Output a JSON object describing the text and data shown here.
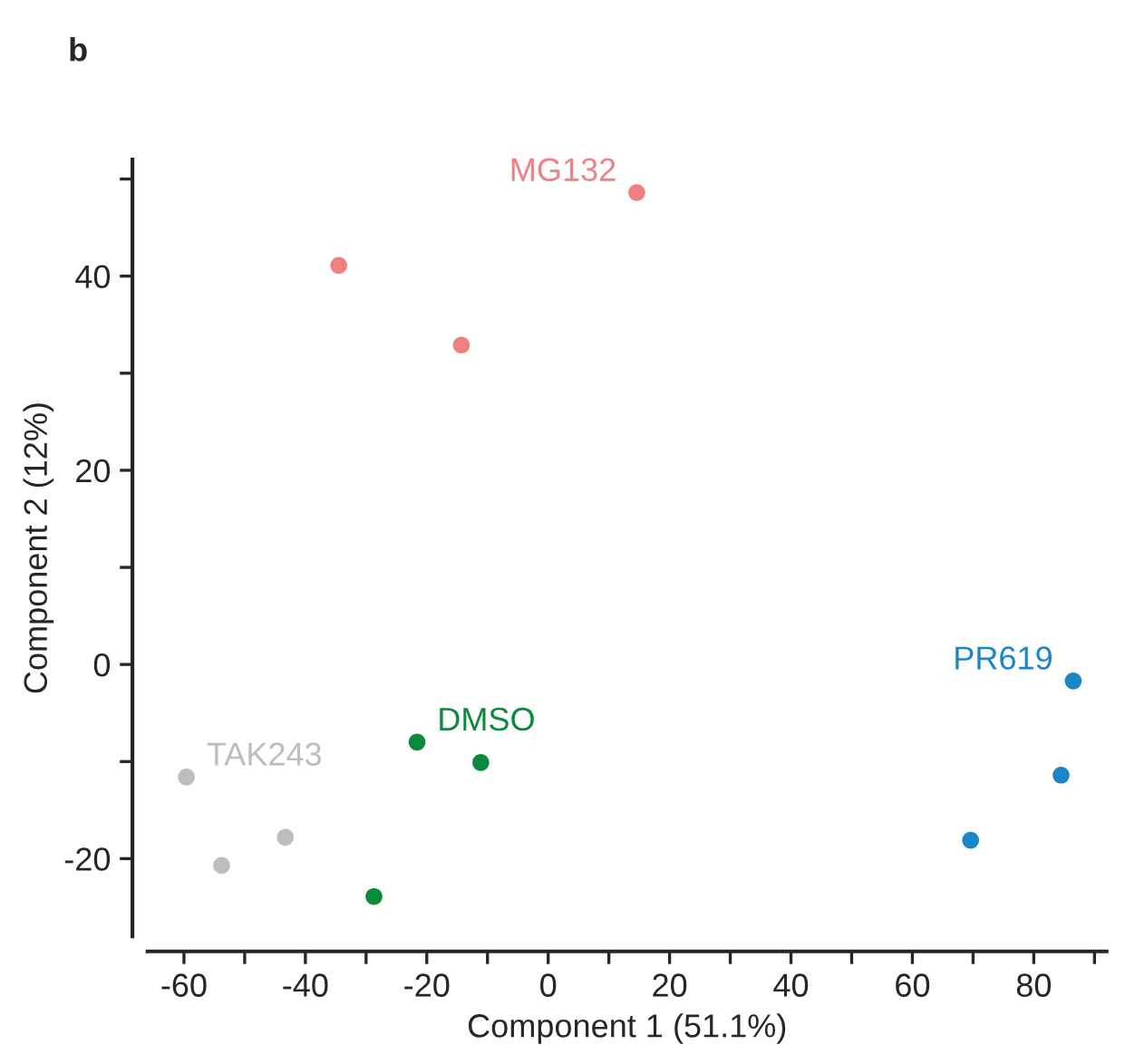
{
  "chart_data": {
    "type": "scatter",
    "title": "b",
    "xlabel": "Component 1 (51.1%)",
    "ylabel": "Component 2 (12%)",
    "series": [
      {
        "name": "MG132",
        "color": "#f08080",
        "x": [
          -34.5,
          -14.3,
          14.6
        ],
        "values": [
          41.1,
          32.9,
          48.6
        ]
      },
      {
        "name": "DMSO",
        "color": "#0b8a3e",
        "x": [
          -21.6,
          -11.1,
          -28.7
        ],
        "values": [
          -8.0,
          -10.1,
          -23.9
        ]
      },
      {
        "name": "TAK243",
        "color": "#bdbdbd",
        "x": [
          -59.6,
          -53.8,
          -43.3
        ],
        "values": [
          -11.6,
          -20.7,
          -17.8
        ]
      },
      {
        "name": "PR619",
        "color": "#1a86c8",
        "x": [
          86.5,
          84.5,
          69.6
        ],
        "values": [
          -1.7,
          -11.4,
          -18.1
        ]
      }
    ],
    "xlim": [
      -66,
      92
    ],
    "ylim": [
      -28,
      52
    ],
    "xticks": [
      -60,
      {
        "value": -50,
        "label": null
      },
      -40,
      {
        "value": -30,
        "label": null
      },
      -20,
      {
        "value": -10,
        "label": null
      },
      0,
      {
        "value": 10,
        "label": null
      },
      20,
      {
        "value": 30,
        "label": null
      },
      40,
      {
        "value": 50,
        "label": null
      },
      60,
      {
        "value": 70,
        "label": null
      },
      80,
      {
        "value": 90,
        "label": null
      }
    ],
    "yticks": [
      -20,
      {
        "value": -10,
        "label": null
      },
      0,
      {
        "value": 10,
        "label": null
      },
      20,
      {
        "value": 30,
        "label": null
      },
      40,
      {
        "value": 50,
        "label": null
      }
    ],
    "marker": "circle",
    "grid": false
  }
}
